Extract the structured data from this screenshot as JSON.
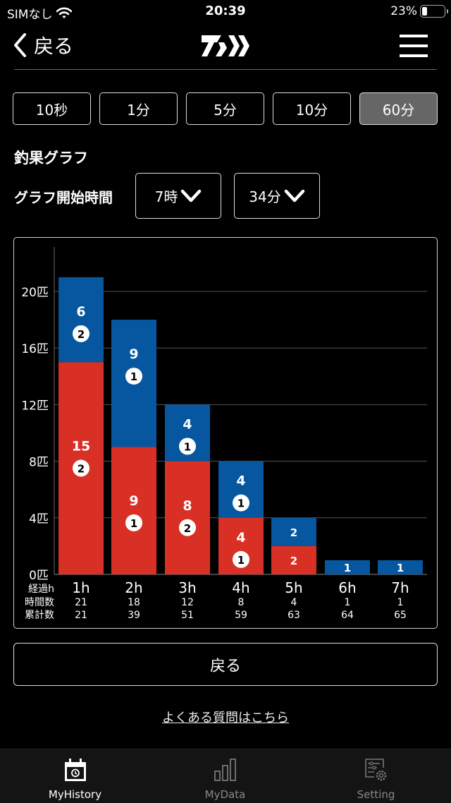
{
  "status_bar": {
    "carrier": "SIMなし",
    "time": "20:39",
    "battery_percent": "23%",
    "battery_level": 0.23
  },
  "nav": {
    "back_label": "戻る",
    "logo": "DAIWA-logo",
    "menu_icon": "hamburger-menu-icon"
  },
  "interval_tabs": [
    {
      "label": "10秒",
      "active": false
    },
    {
      "label": "1分",
      "active": false
    },
    {
      "label": "5分",
      "active": false
    },
    {
      "label": "10分",
      "active": false
    },
    {
      "label": "60分",
      "active": true
    }
  ],
  "section_title": "釣果グラフ",
  "start_time": {
    "label": "グラフ開始時間",
    "hour": "7時",
    "minute": "34分"
  },
  "chart_data": {
    "type": "bar",
    "stacked": true,
    "categories": [
      "1h",
      "2h",
      "3h",
      "4h",
      "5h",
      "6h",
      "7h"
    ],
    "series": [
      {
        "name": "red",
        "color": "#d93025",
        "values": [
          15,
          9,
          8,
          4,
          2,
          0,
          0
        ],
        "badges": [
          2,
          1,
          2,
          1,
          null,
          null,
          null
        ]
      },
      {
        "name": "blue",
        "color": "#0657a0",
        "values": [
          6,
          9,
          4,
          4,
          2,
          1,
          1
        ],
        "badges": [
          2,
          1,
          1,
          1,
          null,
          null,
          null
        ]
      }
    ],
    "ylim": [
      0,
      22
    ],
    "yticks": [
      0,
      4,
      8,
      12,
      16,
      20
    ],
    "ytick_suffix": "匹",
    "grid": true,
    "row_labels": {
      "x": "経過h",
      "hourly": "時間数",
      "cumulative": "累計数"
    },
    "hourly_counts": [
      21,
      18,
      12,
      8,
      4,
      1,
      1
    ],
    "cumulative_counts": [
      21,
      39,
      51,
      59,
      63,
      64,
      65
    ]
  },
  "back_button": "戻る",
  "faq_link": "よくある質問はこちら",
  "tabbar": [
    {
      "label": "MyHistory",
      "icon": "calendar-history-icon",
      "active": true
    },
    {
      "label": "MyData",
      "icon": "bar-chart-icon",
      "active": false
    },
    {
      "label": "Setting",
      "icon": "settings-list-icon",
      "active": false
    }
  ]
}
